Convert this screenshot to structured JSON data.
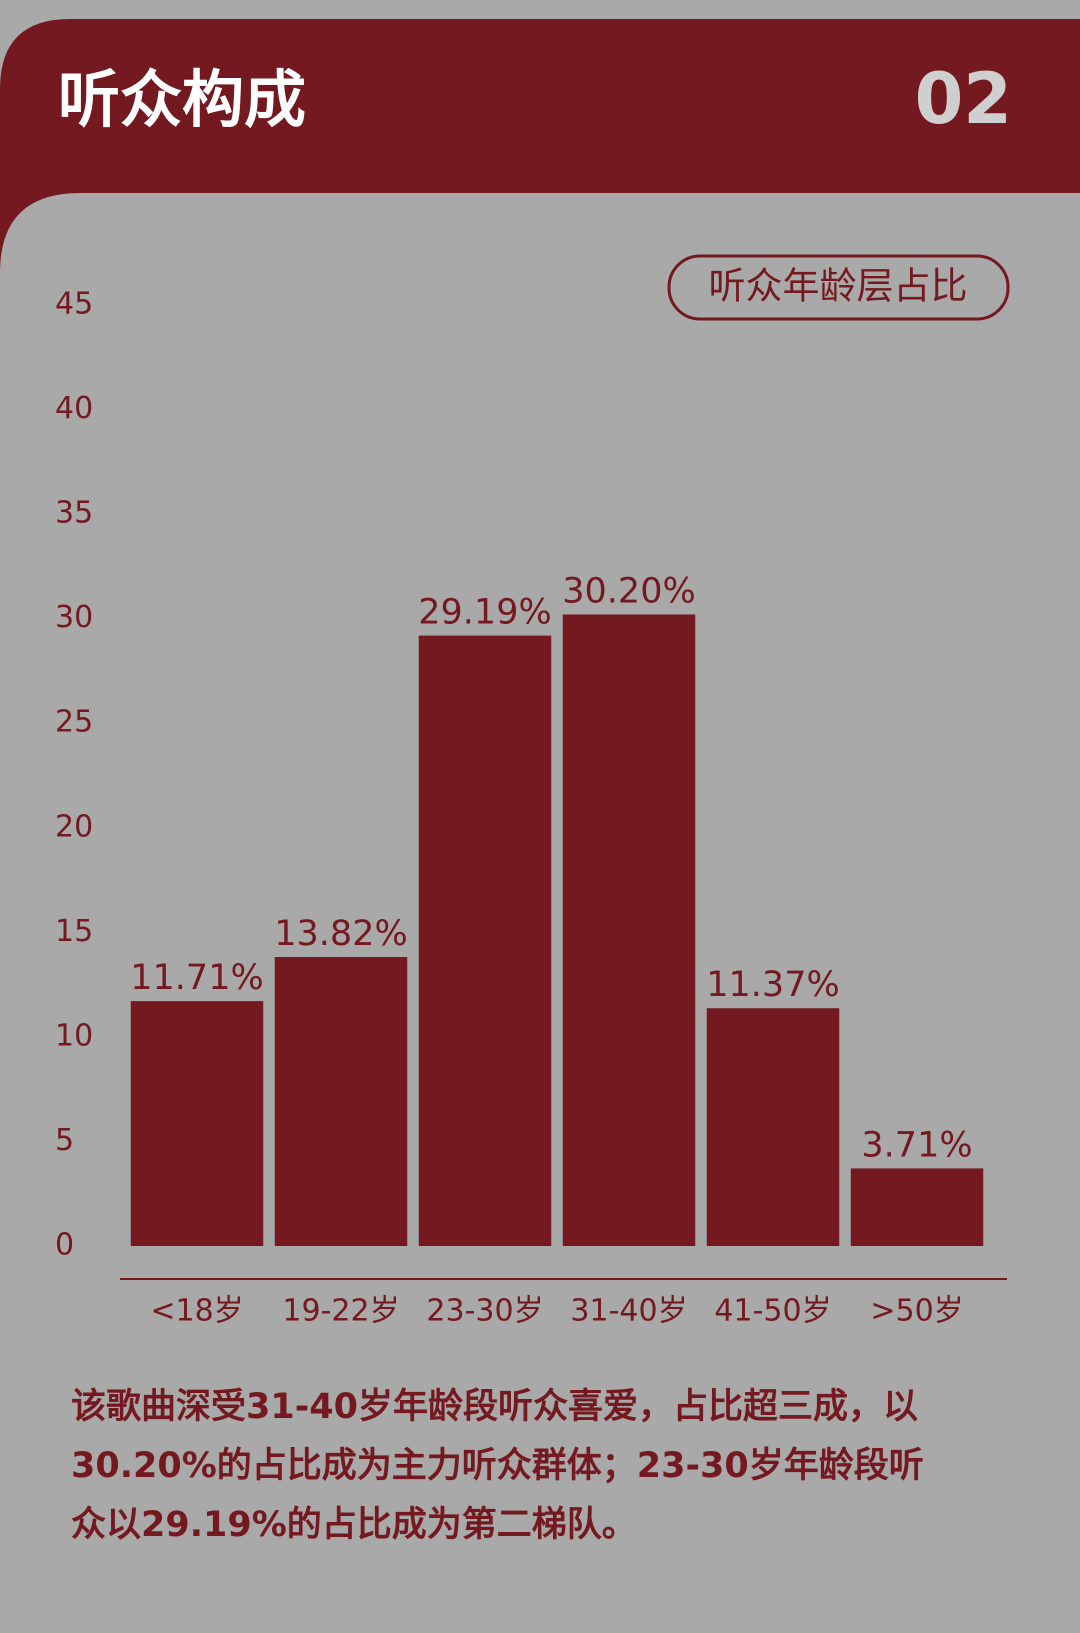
{
  "header": {
    "title": "听众构成",
    "number": "02"
  },
  "chart_data": {
    "type": "bar",
    "title": "听众年龄层占比",
    "categories": [
      "<18岁",
      "19-22岁",
      "23-30岁",
      "31-40岁",
      "41-50岁",
      ">50岁"
    ],
    "values": [
      11.71,
      13.82,
      29.19,
      30.2,
      11.37,
      3.71
    ],
    "value_labels": [
      "11.71%",
      "13.82%",
      "29.19%",
      "30.20%",
      "11.37%",
      "3.71%"
    ],
    "color": "#74191f",
    "ylim": [
      0,
      45
    ],
    "yticks": [
      0,
      5,
      10,
      15,
      20,
      25,
      30,
      35,
      40,
      45
    ],
    "grid": false
  },
  "caption": [
    "该歌曲深受31-40岁年龄段听众喜爱，占比超三成，以",
    "30.20%的占比成为主力听众群体；23-30岁年龄段听",
    "众以29.19%的占比成为第二梯队。"
  ]
}
